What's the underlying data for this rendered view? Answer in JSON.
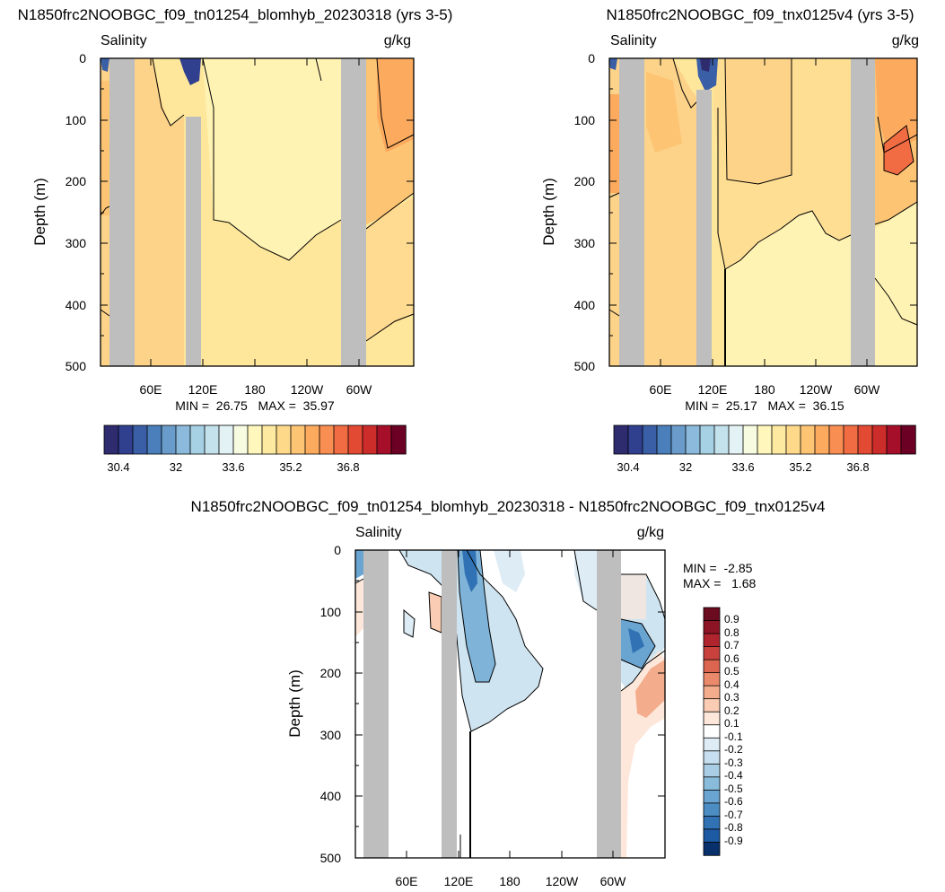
{
  "palette": {
    "cb_main": [
      "#2e2b6f",
      "#313f8f",
      "#3b5fa7",
      "#4a7fbb",
      "#6a9ccb",
      "#8bbadc",
      "#a6d0e4",
      "#c3e2ec",
      "#e3f3f5",
      "#f7fbe0",
      "#fff7bc",
      "#fee9a0",
      "#fed98a",
      "#fdc474",
      "#fcaa5e",
      "#f98e52",
      "#f26c43",
      "#e34a33",
      "#cc2c2a",
      "#a50f2a",
      "#6b0024"
    ],
    "cb_diff": [
      "#08306b",
      "#1c5aa3",
      "#3172b5",
      "#4c8ec4",
      "#6aa4d0",
      "#89bbdb",
      "#a9cde5",
      "#c7def0",
      "#deecf6",
      "#ffffff",
      "#fde7da",
      "#f9ccb3",
      "#f4ad8c",
      "#eb8a6a",
      "#dc6550",
      "#c9413c",
      "#b0252d",
      "#8d1424",
      "#6a0b1f"
    ],
    "continent": "#bebebe",
    "fill_a": "#fee79b",
    "fill_b": "#fdd38a",
    "fill_c": "#fcaa5e",
    "fill_d": "#fff3b4",
    "diff_blue": "#cfe4f1",
    "diff_blue2": "#7fb4d8",
    "diff_red": "#fbe0d2",
    "diff_red2": "#f3a988"
  },
  "chart_data": [
    {
      "type": "heatmap",
      "title": "N1850frc2NOOBGC_f09_tn01254_blomhyb_20230318 (yrs 3-5)",
      "left_label": "Salinity",
      "right_label": "g/kg",
      "ylabel": "Depth (m)",
      "ylim": [
        500,
        0
      ],
      "y_ticks": [
        "0",
        "100",
        "200",
        "300",
        "400",
        "500"
      ],
      "x_ticks": [
        "60E",
        "120E",
        "180",
        "120W",
        "60W"
      ],
      "stats": "MIN =  26.75   MAX =  35.97",
      "colorbar_labels": [
        "30.4",
        "32",
        "33.6",
        "35.2",
        "36.8"
      ]
    },
    {
      "type": "heatmap",
      "title": "N1850frc2NOOBGC_f09_tnx0125v4 (yrs 3-5)",
      "left_label": "Salinity",
      "right_label": "g/kg",
      "ylabel": "Depth (m)",
      "ylim": [
        500,
        0
      ],
      "y_ticks": [
        "0",
        "100",
        "200",
        "300",
        "400",
        "500"
      ],
      "x_ticks": [
        "60E",
        "120E",
        "180",
        "120W",
        "60W"
      ],
      "stats": "MIN =  25.17   MAX =  36.15",
      "colorbar_labels": [
        "30.4",
        "32",
        "33.6",
        "35.2",
        "36.8"
      ]
    },
    {
      "type": "heatmap",
      "title": "N1850frc2NOOBGC_f09_tn01254_blomhyb_20230318 - N1850frc2NOOBGC_f09_tnx0125v4",
      "left_label": "Salinity",
      "right_label": "g/kg",
      "ylabel": "Depth (m)",
      "ylim": [
        500,
        0
      ],
      "y_ticks": [
        "0",
        "100",
        "200",
        "300",
        "400",
        "500"
      ],
      "x_ticks": [
        "60E",
        "120E",
        "180",
        "120W",
        "60W"
      ],
      "stats_min": "MIN =  -2.85",
      "stats_max": "MAX =   1.68",
      "colorbar_labels": [
        "0.9",
        "0.8",
        "0.7",
        "0.6",
        "0.5",
        "0.4",
        "0.3",
        "0.2",
        "0.1",
        "-0.1",
        "-0.2",
        "-0.3",
        "-0.4",
        "-0.5",
        "-0.6",
        "-0.7",
        "-0.8",
        "-0.9"
      ]
    }
  ]
}
